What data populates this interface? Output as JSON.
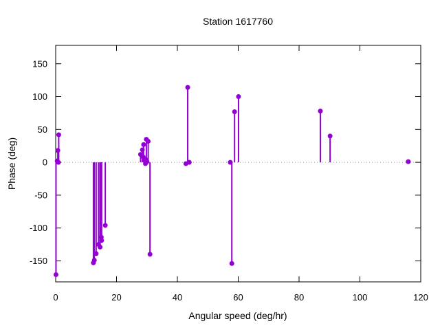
{
  "chart_data": {
    "type": "scatter",
    "style": "impulses-and-points",
    "title": "Station 1617760",
    "xlabel": "Angular speed (deg/hr)",
    "ylabel": "Phase (deg)",
    "xlim": [
      0,
      120
    ],
    "ylim": [
      -182,
      178
    ],
    "xticks": [
      0,
      20,
      40,
      60,
      80,
      100,
      120
    ],
    "yticks": [
      -150,
      -100,
      -50,
      0,
      50,
      100,
      150
    ],
    "grid": false,
    "zero_line": true,
    "legend": "none",
    "series_color": "#9400d3",
    "points": [
      [
        0.1,
        -171
      ],
      [
        0.5,
        2
      ],
      [
        0.7,
        18
      ],
      [
        0.9,
        0
      ],
      [
        1.0,
        42
      ],
      [
        12.4,
        -153
      ],
      [
        12.7,
        -149
      ],
      [
        13.3,
        -139
      ],
      [
        14.1,
        -125
      ],
      [
        14.6,
        -129
      ],
      [
        15.0,
        -114
      ],
      [
        15.1,
        -119
      ],
      [
        16.3,
        -96
      ],
      [
        27.9,
        12
      ],
      [
        28.5,
        19
      ],
      [
        28.8,
        8
      ],
      [
        28.9,
        27
      ],
      [
        29.5,
        -2
      ],
      [
        29.6,
        4
      ],
      [
        29.8,
        35
      ],
      [
        30.0,
        1
      ],
      [
        30.4,
        32
      ],
      [
        31.0,
        -140
      ],
      [
        42.8,
        -2
      ],
      [
        43.4,
        114
      ],
      [
        43.9,
        0
      ],
      [
        57.4,
        0
      ],
      [
        57.9,
        -154
      ],
      [
        58.8,
        77
      ],
      [
        60.1,
        100
      ],
      [
        87.0,
        78
      ],
      [
        90.2,
        40
      ],
      [
        115.9,
        1
      ]
    ]
  }
}
